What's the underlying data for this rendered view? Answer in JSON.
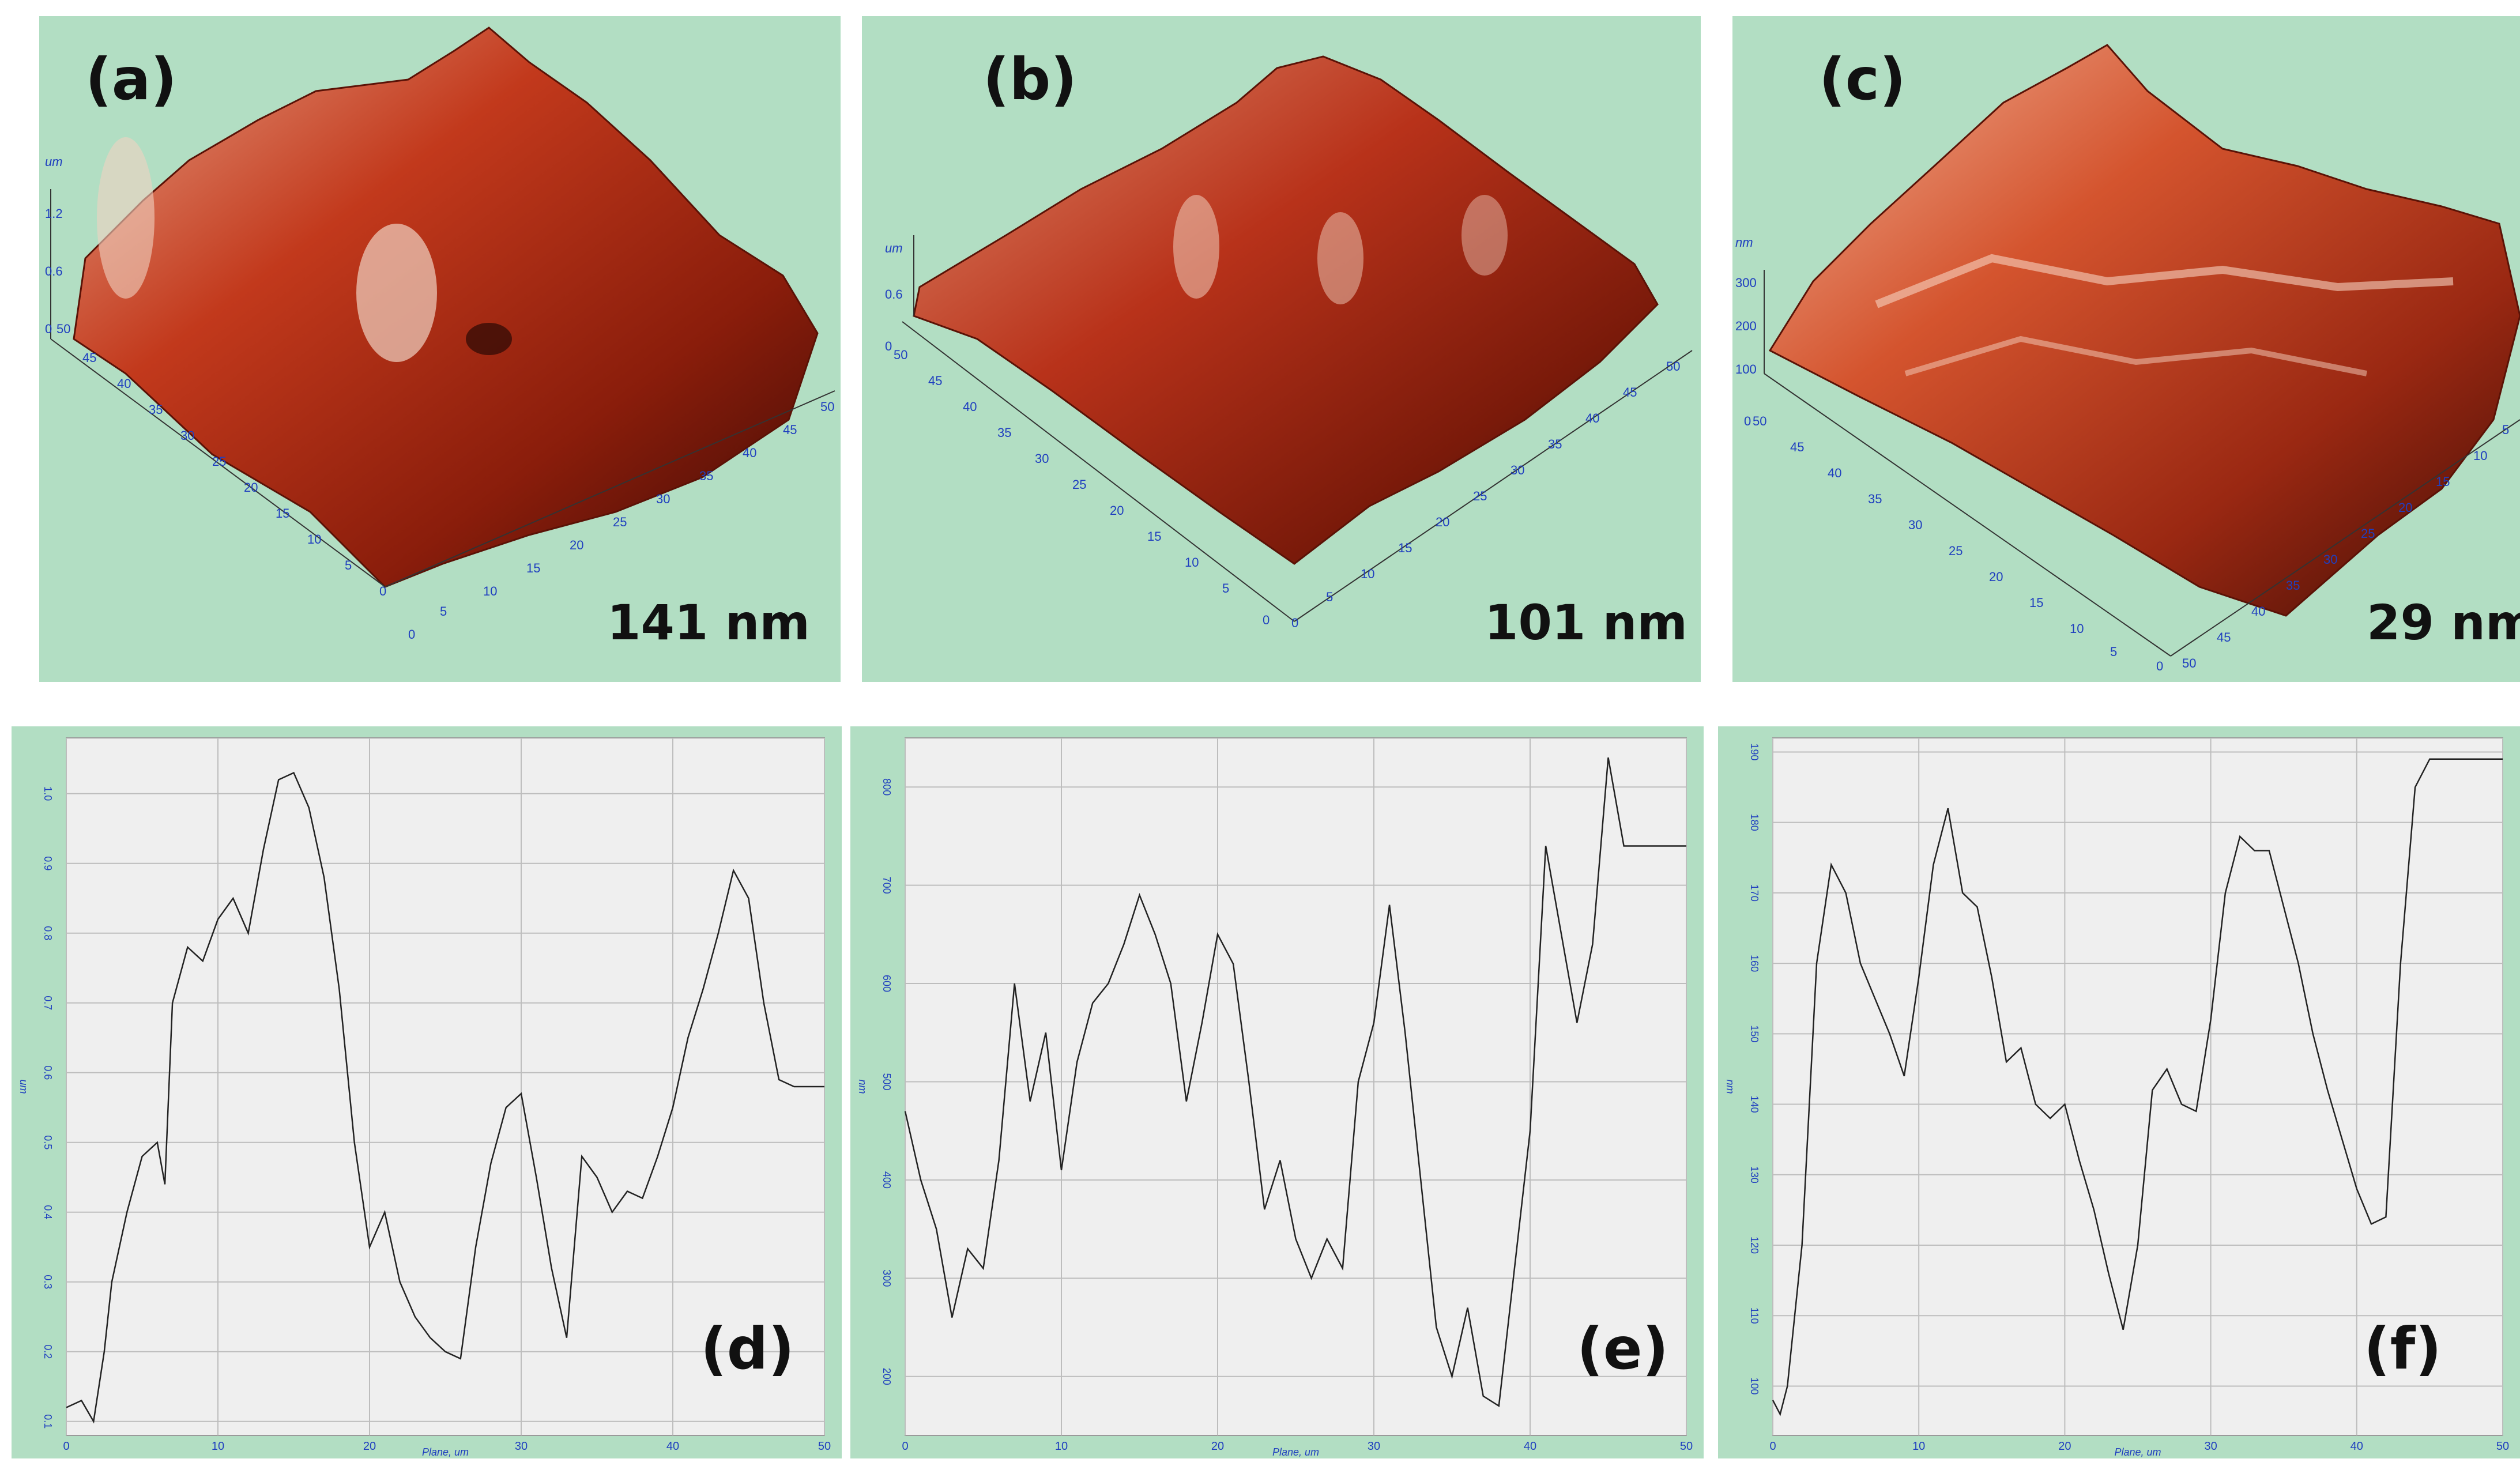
{
  "panels_3d": [
    {
      "label": "(a)",
      "roughness": "141 nm",
      "z_unit": "um",
      "z_ticks": [
        "1.2",
        "0.6",
        "0"
      ],
      "left_ticks": [
        "50",
        "45",
        "40",
        "35",
        "30",
        "25",
        "20",
        "15",
        "10",
        "5",
        "0"
      ],
      "right_ticks": [
        "0",
        "5",
        "10",
        "15",
        "20",
        "25",
        "30",
        "35",
        "40",
        "45",
        "50"
      ]
    },
    {
      "label": "(b)",
      "roughness": "101 nm",
      "z_unit": "um",
      "z_ticks": [
        "0.6",
        "0"
      ],
      "left_ticks": [
        "50",
        "45",
        "40",
        "35",
        "30",
        "25",
        "20",
        "15",
        "10",
        "5",
        "0"
      ],
      "right_ticks": [
        "0",
        "5",
        "10",
        "15",
        "20",
        "25",
        "30",
        "35",
        "40",
        "45",
        "50"
      ]
    },
    {
      "label": "(c)",
      "roughness": "29 nm",
      "z_unit": "nm",
      "z_ticks": [
        "300",
        "200",
        "100",
        "0"
      ],
      "left_ticks": [
        "50",
        "45",
        "40",
        "35",
        "30",
        "25",
        "20",
        "15",
        "10",
        "5",
        "0"
      ],
      "right_ticks": [
        "50",
        "45",
        "40",
        "35",
        "30",
        "25",
        "20",
        "15",
        "10",
        "5"
      ]
    }
  ],
  "chart_data": [
    {
      "type": "line",
      "label": "(d)",
      "xlabel": "Plane, um",
      "ylabel": "um",
      "xlim": [
        0,
        50
      ],
      "ylim": [
        0.08,
        1.08
      ],
      "xticks": [
        0,
        10,
        20,
        30,
        40,
        50
      ],
      "yticks": [
        0.1,
        0.2,
        0.3,
        0.4,
        0.5,
        0.6,
        0.7,
        0.8,
        0.9,
        1.0
      ],
      "ytick_labels": [
        "0.1",
        "0.2",
        "0.3",
        "0.4",
        "0.5",
        "0.6",
        "0.7",
        "0.8",
        "0.9",
        "1.0"
      ],
      "x": [
        0,
        1,
        1.8,
        2.5,
        3,
        4,
        5,
        6,
        6.5,
        7,
        8,
        9,
        10,
        11,
        12,
        13,
        14,
        15,
        16,
        17,
        18,
        19,
        20,
        21,
        22,
        23,
        24,
        25,
        26,
        27,
        28,
        29,
        30,
        31,
        32,
        33,
        34,
        35,
        36,
        37,
        38,
        39,
        40,
        41,
        42,
        43,
        44,
        45,
        46,
        47,
        48,
        49,
        50
      ],
      "y": [
        0.12,
        0.13,
        0.1,
        0.2,
        0.3,
        0.4,
        0.48,
        0.5,
        0.44,
        0.7,
        0.78,
        0.76,
        0.82,
        0.85,
        0.8,
        0.92,
        1.02,
        1.03,
        0.98,
        0.88,
        0.72,
        0.5,
        0.35,
        0.4,
        0.3,
        0.25,
        0.22,
        0.2,
        0.19,
        0.35,
        0.47,
        0.55,
        0.57,
        0.45,
        0.32,
        0.22,
        0.48,
        0.45,
        0.4,
        0.43,
        0.42,
        0.48,
        0.55,
        0.65,
        0.72,
        0.8,
        0.89,
        0.85,
        0.7,
        0.59,
        0.58,
        0.58,
        0.58
      ]
    },
    {
      "type": "line",
      "label": "(e)",
      "xlabel": "Plane, um",
      "ylabel": "nm",
      "xlim": [
        0,
        50
      ],
      "ylim": [
        140,
        850
      ],
      "xticks": [
        0,
        10,
        20,
        30,
        40,
        50
      ],
      "yticks": [
        200,
        300,
        400,
        500,
        600,
        700,
        800
      ],
      "ytick_labels": [
        "200",
        "300",
        "400",
        "500",
        "600",
        "700",
        "800"
      ],
      "x": [
        0,
        1,
        2,
        3,
        4,
        5,
        6,
        7,
        8,
        9,
        10,
        11,
        12,
        13,
        14,
        15,
        16,
        17,
        18,
        19,
        20,
        21,
        22,
        23,
        24,
        25,
        26,
        27,
        28,
        29,
        30,
        31,
        32,
        33,
        34,
        35,
        36,
        37,
        38,
        39,
        40,
        41,
        42,
        43,
        44,
        45,
        46,
        47,
        48,
        49,
        50
      ],
      "y": [
        470,
        400,
        350,
        260,
        330,
        310,
        420,
        600,
        480,
        550,
        410,
        520,
        580,
        600,
        640,
        690,
        650,
        600,
        480,
        560,
        650,
        620,
        500,
        370,
        420,
        340,
        300,
        340,
        310,
        500,
        560,
        680,
        550,
        400,
        250,
        200,
        270,
        180,
        170,
        310,
        450,
        740,
        650,
        560,
        640,
        830,
        740,
        740,
        740,
        740,
        740
      ]
    },
    {
      "type": "line",
      "label": "(f)",
      "xlabel": "Plane, um",
      "ylabel": "nm",
      "xlim": [
        0,
        50
      ],
      "ylim": [
        93,
        192
      ],
      "xticks": [
        0,
        10,
        20,
        30,
        40,
        50
      ],
      "yticks": [
        100,
        110,
        120,
        130,
        140,
        150,
        160,
        170,
        180,
        190
      ],
      "ytick_labels": [
        "100",
        "110",
        "120",
        "130",
        "140",
        "150",
        "160",
        "170",
        "180",
        "190"
      ],
      "x": [
        0,
        0.5,
        1,
        2,
        3,
        4,
        5,
        6,
        7,
        8,
        9,
        10,
        11,
        12,
        13,
        14,
        15,
        16,
        17,
        18,
        19,
        20,
        21,
        22,
        23,
        24,
        25,
        26,
        27,
        28,
        29,
        30,
        31,
        32,
        33,
        34,
        35,
        36,
        37,
        38,
        39,
        40,
        41,
        42,
        43,
        44,
        45,
        46,
        47,
        48,
        49,
        50
      ],
      "y": [
        98,
        96,
        100,
        120,
        160,
        174,
        170,
        160,
        155,
        150,
        144,
        158,
        174,
        182,
        170,
        168,
        158,
        146,
        148,
        140,
        138,
        140,
        132,
        125,
        116,
        108,
        120,
        142,
        145,
        140,
        139,
        152,
        170,
        178,
        176,
        176,
        168,
        160,
        150,
        142,
        135,
        128,
        123,
        124,
        160,
        185,
        189,
        189,
        189,
        189,
        189,
        189
      ]
    }
  ]
}
